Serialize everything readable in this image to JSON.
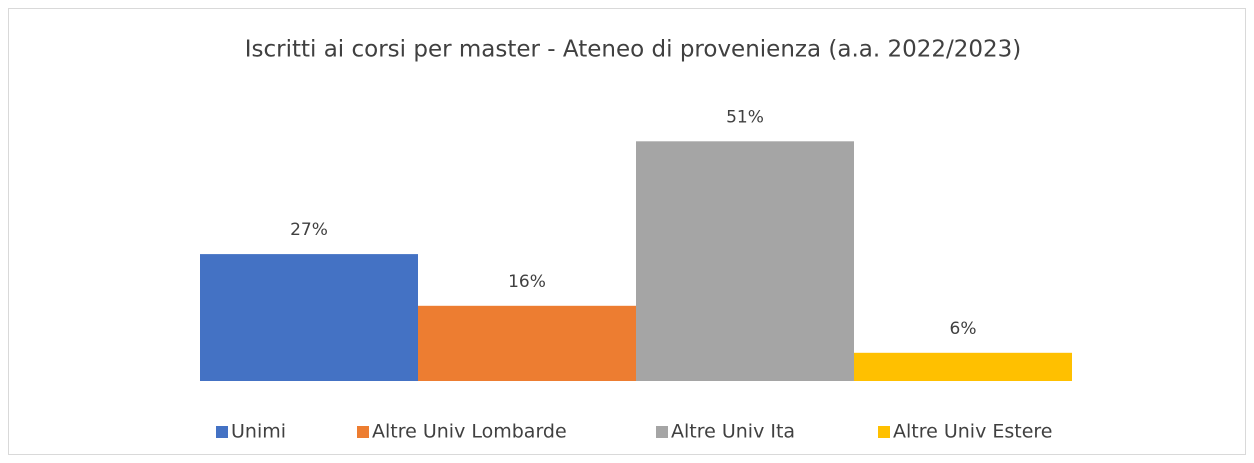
{
  "chart_data": {
    "type": "bar",
    "title": "Iscritti ai corsi per master - Ateneo di provenienza (a.a. 2022/2023)",
    "series": [
      {
        "name": "Unimi",
        "color": "#4472c4",
        "values": [
          27
        ],
        "value_labels": [
          "27%"
        ]
      },
      {
        "name": "Altre Univ Lombarde",
        "color": "#ed7d31",
        "values": [
          16
        ],
        "value_labels": [
          "16%"
        ]
      },
      {
        "name": "Altre Univ Ita",
        "color": "#a5a5a5",
        "values": [
          51
        ],
        "value_labels": [
          "51%"
        ]
      },
      {
        "name": "Altre Univ Estere",
        "color": "#ffc000",
        "values": [
          6
        ],
        "value_labels": [
          "6%"
        ]
      }
    ],
    "ylim": [
      0,
      60
    ],
    "legend": "bottom"
  }
}
